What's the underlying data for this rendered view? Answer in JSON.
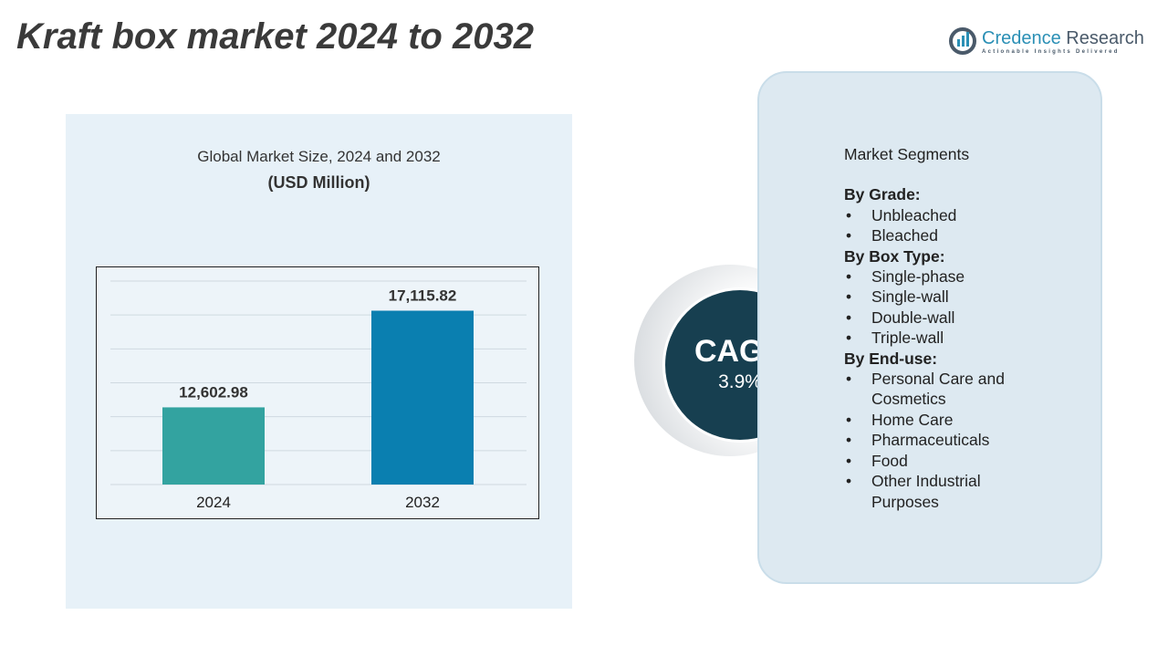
{
  "title": "Kraft box market 2024 to 2032",
  "logo": {
    "name_part1": "Credence",
    "name_part2": " Research",
    "tagline": "Actionable Insights Delivered"
  },
  "chart_heading": "Global Market Size, 2024 and 2032",
  "chart_unit": "(USD Million)",
  "chart_data": {
    "type": "bar",
    "categories": [
      "2024",
      "2032"
    ],
    "values": [
      12602.98,
      17115.82
    ],
    "value_labels": [
      "12,602.98",
      "17,115.82"
    ],
    "colors": [
      "#33a3a0",
      "#0a7fb0"
    ],
    "ylim": [
      9000,
      18500
    ],
    "grid": true,
    "title": "",
    "xlabel": "",
    "ylabel": ""
  },
  "cagr": {
    "label": "CAGR",
    "value": "3.9%"
  },
  "segments": {
    "heading": "Market Segments",
    "groups": [
      {
        "title": "By Grade:",
        "items": [
          "Unbleached",
          "Bleached"
        ]
      },
      {
        "title": "By Box Type:",
        "items": [
          "Single-phase",
          "Single-wall",
          "Double-wall",
          "Triple-wall"
        ]
      },
      {
        "title": "By End-use:",
        "items": [
          "Personal Care and Cosmetics",
          "Home Care",
          "Pharmaceuticals",
          "Food",
          "Other Industrial Purposes"
        ]
      }
    ]
  }
}
